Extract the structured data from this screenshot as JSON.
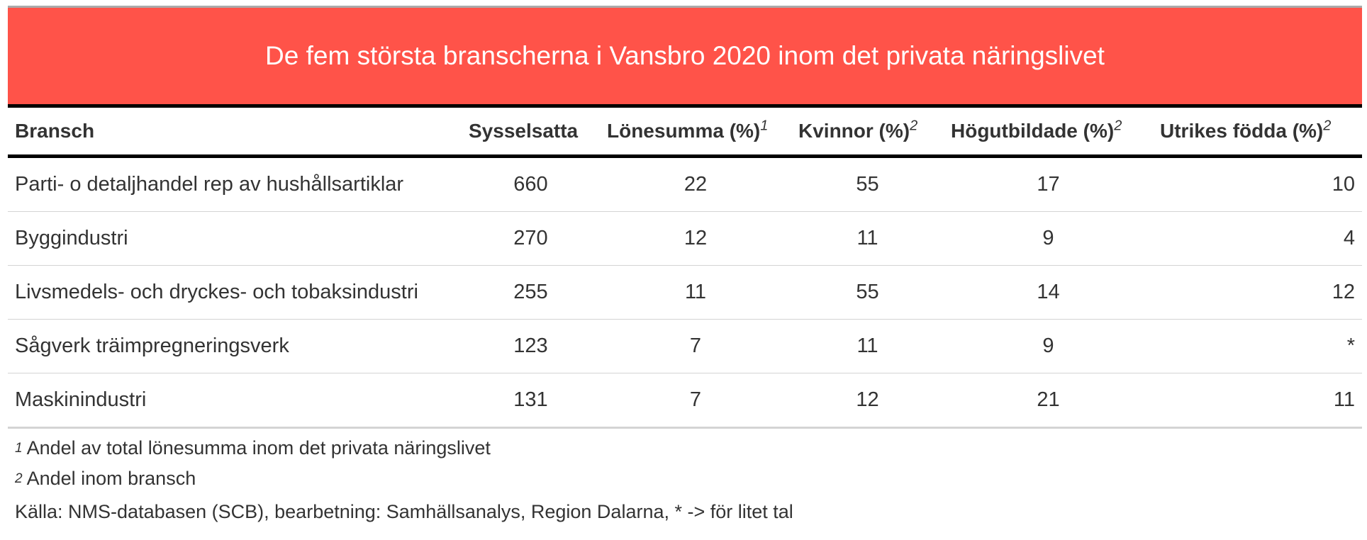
{
  "title": "De fem största branscherna i Vansbro 2020 inom det privata näringslivet",
  "colors": {
    "title_background": "#ff5349",
    "title_text": "#ffffff"
  },
  "table": {
    "columns": [
      {
        "label": "Bransch",
        "sup": ""
      },
      {
        "label": "Sysselsatta",
        "sup": ""
      },
      {
        "label": "Lönesumma (%)",
        "sup": "1"
      },
      {
        "label": "Kvinnor (%)",
        "sup": "2"
      },
      {
        "label": "Högutbildade (%)",
        "sup": "2"
      },
      {
        "label": "Utrikes födda (%)",
        "sup": "2"
      }
    ],
    "rows": [
      [
        "Parti- o detaljhandel rep av hushållsartiklar",
        "660",
        "22",
        "55",
        "17",
        "10"
      ],
      [
        "Byggindustri",
        "270",
        "12",
        "11",
        "9",
        "4"
      ],
      [
        "Livsmedels- och dryckes- och tobaksindustri",
        "255",
        "11",
        "55",
        "14",
        "12"
      ],
      [
        "Sågverk träimpregneringsverk",
        "123",
        "7",
        "11",
        "9",
        "*"
      ],
      [
        "Maskinindustri",
        "131",
        "7",
        "12",
        "21",
        "11"
      ]
    ]
  },
  "footnotes": [
    {
      "mark": "1",
      "text": "Andel av total lönesumma inom det privata näringslivet"
    },
    {
      "mark": "2",
      "text": "Andel inom bransch"
    }
  ],
  "source": "Källa: NMS-databasen (SCB), bearbetning: Samhällsanalys, Region Dalarna, * -> för litet tal"
}
